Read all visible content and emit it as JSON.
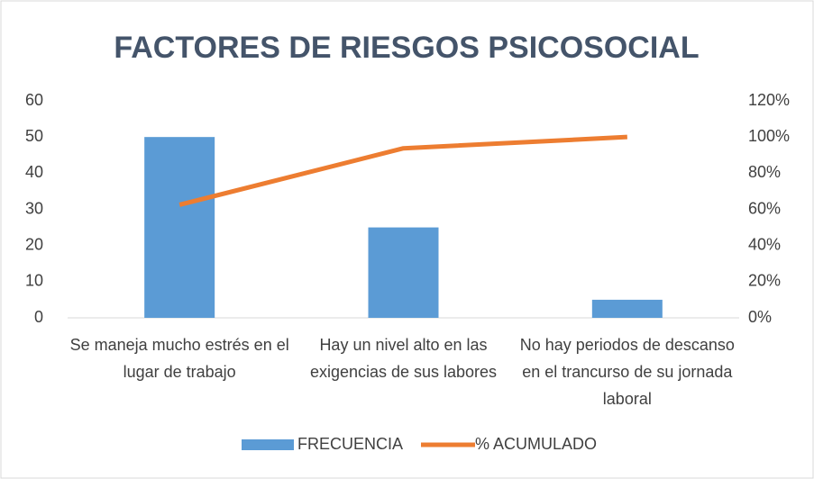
{
  "chart_data": {
    "type": "bar",
    "title": "FACTORES DE RIESGOS PSICOSOCIAL",
    "categories": [
      "Se maneja mucho estrés en el lugar de trabajo",
      "Hay un nivel alto en las exigencias de sus labores",
      "No hay periodos de descanso en el trancurso de su jornada laboral"
    ],
    "series": [
      {
        "name": "FRECUENCIA",
        "type": "bar",
        "color": "#5b9bd5",
        "values": [
          50,
          25,
          5
        ]
      },
      {
        "name": "% ACUMULADO",
        "type": "line",
        "color": "#ed7d31",
        "axis": "y2",
        "values": [
          62.5,
          93.75,
          100
        ]
      }
    ],
    "ylim": [
      0,
      60
    ],
    "yticks": [
      0,
      10,
      20,
      30,
      40,
      50,
      60
    ],
    "y2lim": [
      0,
      120
    ],
    "y2ticks": [
      {
        "value": 0,
        "label": "0%"
      },
      {
        "value": 20,
        "label": "20%"
      },
      {
        "value": 40,
        "label": "40%"
      },
      {
        "value": 60,
        "label": "60%"
      },
      {
        "value": 80,
        "label": "80%"
      },
      {
        "value": 100,
        "label": "100%"
      },
      {
        "value": 120,
        "label": "120%"
      }
    ],
    "grid": false,
    "legend": "bottom"
  }
}
